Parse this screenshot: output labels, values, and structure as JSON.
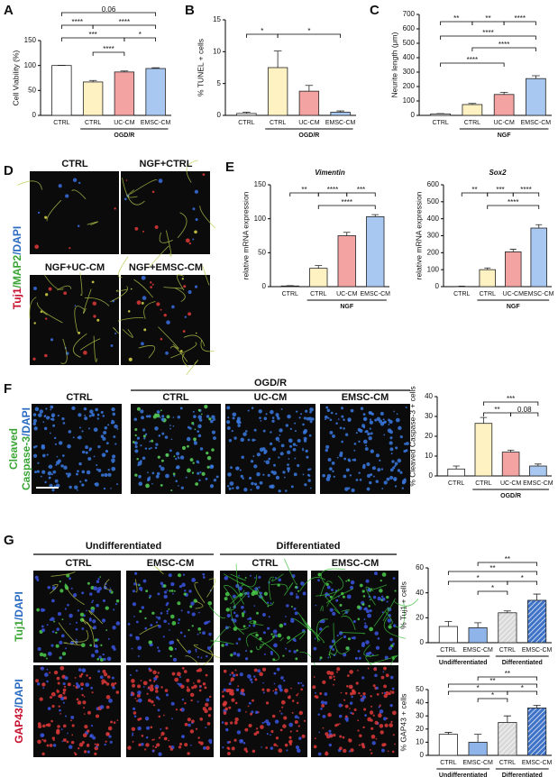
{
  "chart_data": [
    {
      "type": "bar",
      "panel": "A",
      "y_label": "Cell Viability (%)",
      "categories": [
        "CTRL",
        "CTRL",
        "UC-CM",
        "EMSC-CM"
      ],
      "values": [
        100,
        67,
        87,
        94
      ],
      "errors": [
        0.5,
        3,
        2,
        1.5
      ],
      "colors": [
        "#ffffff",
        "#fff2c2",
        "#f4a3a3",
        "#a8c8f2"
      ],
      "ylim": [
        0,
        150
      ],
      "yticks": [
        0,
        50,
        100,
        150
      ],
      "group_labels": [
        "OGD/R"
      ],
      "annotations": [
        "0.06",
        "****",
        "****",
        "***",
        "*",
        "****"
      ]
    },
    {
      "type": "bar",
      "panel": "B",
      "y_label": "% TUNEL + cells",
      "categories": [
        "CTRL",
        "CTRL",
        "UC-CM",
        "EMSC-CM"
      ],
      "values": [
        0.3,
        7.5,
        3.8,
        0.5
      ],
      "errors": [
        0.2,
        2.6,
        0.9,
        0.2
      ],
      "colors": [
        "#ffffff",
        "#fff2c2",
        "#f4a3a3",
        "#a8c8f2"
      ],
      "ylim": [
        0,
        15
      ],
      "yticks": [
        0,
        5,
        10,
        15
      ],
      "group_labels": [
        "OGD/R"
      ],
      "annotations": [
        "*",
        "*"
      ]
    },
    {
      "type": "bar",
      "panel": "C",
      "y_label": "Neurite length (μm)",
      "categories": [
        "CTRL",
        "CTRL",
        "UC-CM",
        "EMSC-CM"
      ],
      "values": [
        10,
        75,
        145,
        255
      ],
      "errors": [
        2,
        8,
        15,
        20
      ],
      "colors": [
        "#ffffff",
        "#fff2c2",
        "#f4a3a3",
        "#a8c8f2"
      ],
      "ylim": [
        0,
        700
      ],
      "yticks": [
        0,
        100,
        200,
        300,
        400,
        500,
        600,
        700
      ],
      "group_labels": [
        "NGF"
      ],
      "annotations": [
        "**",
        "**",
        "****",
        "****",
        "****",
        "****"
      ]
    },
    {
      "type": "bar",
      "panel": "E",
      "title": "Vimentin",
      "y_label": "relative mRNA expression",
      "categories": [
        "CTRL",
        "CTRL",
        "UC-CM",
        "EMSC-CM"
      ],
      "values": [
        1,
        27,
        75,
        103
      ],
      "errors": [
        0.5,
        4,
        5,
        3
      ],
      "colors": [
        "#ffffff",
        "#fff2c2",
        "#f4a3a3",
        "#a8c8f2"
      ],
      "ylim": [
        0,
        150
      ],
      "yticks": [
        0,
        50,
        100,
        150
      ],
      "group_labels": [
        "NGF"
      ],
      "annotations": [
        "**",
        "****",
        "***",
        "****"
      ]
    },
    {
      "type": "bar",
      "title": "Sox2",
      "y_label": "relative mRNA expression",
      "categories": [
        "CTRL",
        "CTRL",
        "UC-CM",
        "EMSC-CM"
      ],
      "values": [
        1,
        100,
        205,
        345
      ],
      "errors": [
        2,
        10,
        15,
        20
      ],
      "colors": [
        "#ffffff",
        "#fff2c2",
        "#f4a3a3",
        "#a8c8f2"
      ],
      "ylim": [
        0,
        600
      ],
      "yticks": [
        0,
        100,
        200,
        300,
        400,
        500,
        600
      ],
      "group_labels": [
        "NGF"
      ],
      "annotations": [
        "**",
        "***",
        "****",
        "****"
      ]
    },
    {
      "type": "bar",
      "y_label": "% Cleaved Caspase-3 + cells",
      "categories": [
        "CTRL",
        "CTRL",
        "UC-CM",
        "EMSC-CM"
      ],
      "values": [
        3.5,
        26.5,
        12,
        5
      ],
      "errors": [
        1.5,
        3,
        1,
        1
      ],
      "colors": [
        "#ffffff",
        "#fff2c2",
        "#f4a3a3",
        "#a8c8f2"
      ],
      "ylim": [
        0,
        40
      ],
      "yticks": [
        0,
        10,
        20,
        30,
        40
      ],
      "group_labels": [
        "OGD/R"
      ],
      "annotations": [
        "***",
        "**",
        "0.08"
      ]
    },
    {
      "type": "bar",
      "y_label": "% Tuj1 + cells",
      "categories": [
        "CTRL",
        "EMSC-CM",
        "CTRL",
        "EMSC-CM"
      ],
      "values": [
        13,
        12,
        24,
        34
      ],
      "errors": [
        4,
        4,
        1.5,
        5
      ],
      "colors": [
        "#ffffff",
        "#8fb4ea",
        "#d9d9d9",
        "#3f73c8"
      ],
      "hatched": [
        false,
        false,
        true,
        true
      ],
      "ylim": [
        0,
        60
      ],
      "yticks": [
        0,
        20,
        40,
        60
      ],
      "group_labels": [
        "Undifferentiated",
        "Differentiated"
      ],
      "annotations": [
        "**",
        "**",
        "*",
        "*",
        "*"
      ]
    },
    {
      "type": "bar",
      "y_label": "% GAP43 + cells",
      "categories": [
        "CTRL",
        "EMSC-CM",
        "CTRL",
        "EMSC-CM"
      ],
      "values": [
        16,
        10,
        25,
        36
      ],
      "errors": [
        1.5,
        6,
        5,
        2
      ],
      "colors": [
        "#ffffff",
        "#8fb4ea",
        "#d9d9d9",
        "#3f73c8"
      ],
      "hatched": [
        false,
        false,
        true,
        true
      ],
      "ylim": [
        0,
        50
      ],
      "yticks": [
        0,
        10,
        20,
        30,
        40,
        50
      ],
      "group_labels": [
        "Undifferentiated",
        "Differentiated"
      ],
      "annotations": [
        "**",
        "**",
        "*",
        "*",
        "*"
      ]
    }
  ],
  "figure_D": {
    "panel": "D",
    "side_label": [
      "Tuj1",
      "/MAP2",
      "/DAPI"
    ],
    "labels": [
      "CTRL",
      "NGF+CTRL",
      "NGF+UC-CM",
      "NGF+EMSC-CM"
    ]
  },
  "figure_F": {
    "panel": "F",
    "side_label": [
      "Cleaved",
      "Caspase-3",
      "/DAPI"
    ],
    "group_label": "OGD/R",
    "labels": [
      "CTRL",
      "CTRL",
      "UC-CM",
      "EMSC-CM"
    ]
  },
  "figure_G": {
    "panel": "G",
    "side_labels": [
      [
        "Tuj1",
        "/DAPI"
      ],
      [
        "GAP43",
        "/DAPI"
      ]
    ],
    "group_labels": [
      "Undifferentiated",
      "Differentiated"
    ],
    "labels": [
      "CTRL",
      "EMSC-CM",
      "CTRL",
      "EMSC-CM"
    ]
  }
}
